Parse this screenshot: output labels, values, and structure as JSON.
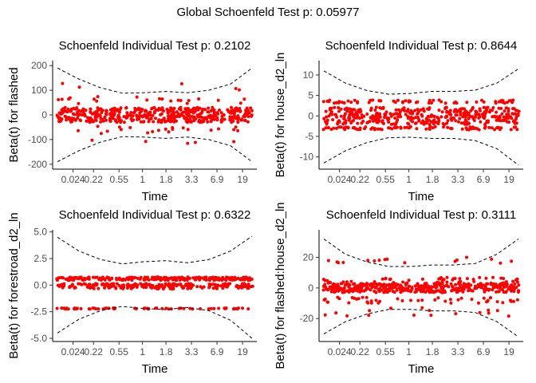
{
  "global_title": "Global Schoenfeld Test p: 0.05977",
  "x_tick_labels": [
    "0.024",
    "0.22",
    "0.55",
    "1",
    "1.8",
    "3.3",
    "6.9",
    "19"
  ],
  "colors": {
    "points": "#ff0000",
    "band": "#000000"
  },
  "chart_data": [
    {
      "type": "scatter",
      "title": "Schoenfeld Individual Test p: 0.2102",
      "xlabel": "Time",
      "ylabel": "Beta(t) for flashed",
      "y_ticks": [
        200,
        100,
        0,
        -100,
        -200
      ],
      "y_tick_labels": [
        "200",
        "100",
        "0",
        "-100",
        "-200"
      ],
      "ylim": [
        -220,
        220
      ],
      "band_upper": [
        190,
        145,
        110,
        88,
        90,
        95,
        90,
        100,
        125,
        190
      ],
      "band_lower": [
        -190,
        -145,
        -110,
        -88,
        -90,
        -95,
        -90,
        -100,
        -125,
        -190
      ],
      "point_levels": [
        {
          "y": 0,
          "spread": 30,
          "share": 0.9
        },
        {
          "y": 60,
          "spread": 15,
          "share": 0.04
        },
        {
          "y": -60,
          "spread": 15,
          "share": 0.04
        },
        {
          "y": 110,
          "spread": 25,
          "share": 0.01
        },
        {
          "y": -110,
          "spread": 10,
          "share": 0.01
        }
      ]
    },
    {
      "type": "scatter",
      "title": "Schoenfeld Individual Test p: 0.8644",
      "xlabel": "Time",
      "ylabel": "Beta(t) for house_d2_ln",
      "y_ticks": [
        10,
        5,
        0,
        -5,
        -10
      ],
      "y_tick_labels": [
        "10",
        "5",
        "0",
        "-5",
        "-10"
      ],
      "ylim": [
        -13,
        13.5
      ],
      "band_upper": [
        11,
        8,
        6.2,
        5.3,
        5.5,
        6,
        6,
        6.3,
        8,
        11.5
      ],
      "band_lower": [
        -11.5,
        -8.5,
        -6.5,
        -5.3,
        -5.2,
        -5.5,
        -5.5,
        -6,
        -8,
        -12
      ],
      "point_levels": [
        {
          "y": 3.5,
          "spread": 0.4,
          "share": 0.12
        },
        {
          "y": 1.5,
          "spread": 0.6,
          "share": 0.22
        },
        {
          "y": 0,
          "spread": 0.7,
          "share": 0.3
        },
        {
          "y": -1.5,
          "spread": 0.6,
          "share": 0.2
        },
        {
          "y": -3,
          "spread": 0.4,
          "share": 0.16
        }
      ]
    },
    {
      "type": "scatter",
      "title": "Schoenfeld Individual Test p: 0.6322",
      "xlabel": "Time",
      "ylabel": "Beta(t) for forestroad_d2_ln",
      "y_ticks": [
        5,
        2.5,
        0,
        -2.5,
        -5
      ],
      "y_tick_labels": [
        "5.0",
        "2.5",
        "0.0",
        "-2.5",
        "-5.0"
      ],
      "ylim": [
        -5.3,
        5.2
      ],
      "band_upper": [
        4.5,
        3.2,
        2.4,
        2.0,
        2.2,
        2.3,
        2.1,
        2.4,
        3.2,
        4.6
      ],
      "band_lower": [
        -4.5,
        -3.2,
        -2.4,
        -2.0,
        -2.2,
        -2.3,
        -2.1,
        -2.4,
        -3.3,
        -5.0
      ],
      "point_levels": [
        {
          "y": 0.6,
          "spread": 0.15,
          "share": 0.45
        },
        {
          "y": 0,
          "spread": 0.15,
          "share": 0.3
        },
        {
          "y": -0.25,
          "spread": 0.1,
          "share": 0.13
        },
        {
          "y": -2.2,
          "spread": 0.05,
          "share": 0.12
        }
      ]
    },
    {
      "type": "scatter",
      "title": "Schoenfeld Individual Test p: 0.3111",
      "xlabel": "Time",
      "ylabel": "Beta(t) for flashed:house_d2_ln",
      "y_ticks": [
        20,
        0,
        -20
      ],
      "y_tick_labels": [
        "20",
        "0",
        "-20"
      ],
      "ylim": [
        -35,
        38
      ],
      "band_upper": [
        32,
        22,
        17,
        14,
        14,
        15,
        15,
        16,
        22,
        32
      ],
      "band_lower": [
        -30,
        -22,
        -17,
        -14,
        -14,
        -15,
        -15,
        -16,
        -22,
        -32
      ],
      "point_levels": [
        {
          "y": 0,
          "spread": 3,
          "share": 0.75
        },
        {
          "y": 5,
          "spread": 2,
          "share": 0.1
        },
        {
          "y": -8,
          "spread": 2,
          "share": 0.09
        },
        {
          "y": 18,
          "spread": 2,
          "share": 0.03
        },
        {
          "y": -16,
          "spread": 3,
          "share": 0.03
        }
      ]
    }
  ]
}
